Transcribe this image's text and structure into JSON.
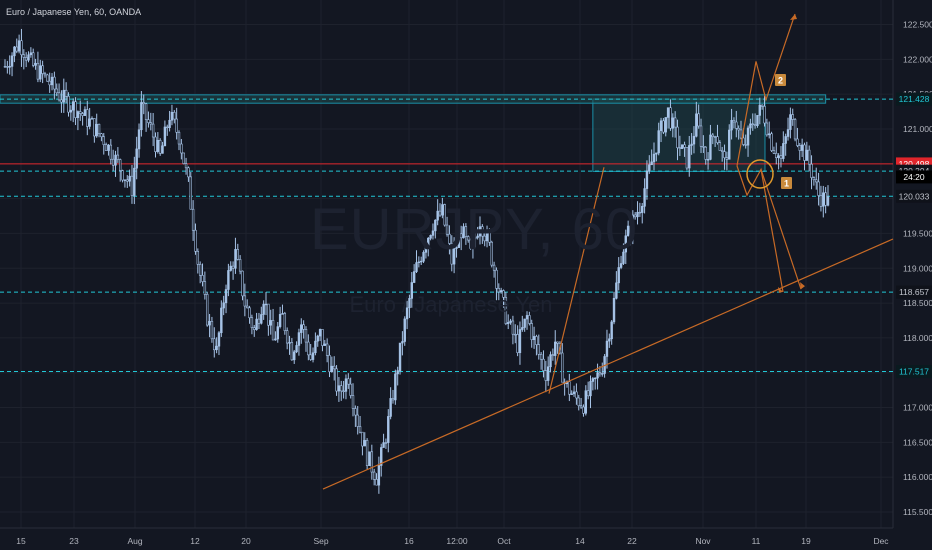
{
  "header": {
    "title": "Euro / Japanese Yen, 60, OANDA"
  },
  "watermark": {
    "symbol": "EURJPY, 60",
    "name": "Euro / Japanese Yen"
  },
  "colors": {
    "background": "#131722",
    "grid": "#1e222d",
    "candle": "#a7c4e8",
    "cyan_line": "#22c7d6",
    "trend_line": "#c76a26",
    "red_line": "#e0252b",
    "badge_red": "#e0252b",
    "badge_dark": "#0f121a",
    "box_fill": "#1f4a4f",
    "box_border": "#1a8fa6",
    "axis_text": "#b2b5be",
    "annotation_badge": "#c98a3c"
  },
  "chart_data": {
    "type": "candlestick",
    "title": "Euro / Japanese Yen, 60, OANDA",
    "ylim": [
      115.3,
      122.75
    ],
    "y_ticks": [
      115.5,
      116.0,
      116.5,
      117.0,
      117.5,
      118.0,
      118.5,
      119.0,
      119.5,
      120.0,
      120.5,
      121.0,
      121.5,
      122.0,
      122.5
    ],
    "y_tick_labels": [
      "115.500",
      "116.000",
      "116.500",
      "117.000",
      "117.500",
      "118.000",
      "118.500",
      "119.000",
      "119.500",
      "120.000",
      "120.500",
      "121.000",
      "121.500",
      "122.000",
      "122.500"
    ],
    "x_ticks": [
      "15",
      "23",
      "Aug",
      "12",
      "20",
      "Sep",
      "16",
      "12:00",
      "Oct",
      "14",
      "22",
      "Nov",
      "11",
      "19",
      "Dec"
    ],
    "price_path": [
      [
        0,
        121.9
      ],
      [
        3,
        122.25
      ],
      [
        6,
        121.9
      ],
      [
        9,
        121.7
      ],
      [
        12,
        121.45
      ],
      [
        15,
        121.3
      ],
      [
        18,
        121.1
      ],
      [
        21,
        120.85
      ],
      [
        24,
        120.5
      ],
      [
        27,
        120.15
      ],
      [
        29,
        121.3
      ],
      [
        31,
        121.0
      ],
      [
        33,
        120.6
      ],
      [
        35,
        121.2
      ],
      [
        37,
        120.9
      ],
      [
        39,
        120.2
      ],
      [
        41,
        119.1
      ],
      [
        43,
        118.3
      ],
      [
        45,
        117.8
      ],
      [
        47,
        118.8
      ],
      [
        49,
        119.2
      ],
      [
        51,
        118.5
      ],
      [
        53,
        118.1
      ],
      [
        55,
        118.6
      ],
      [
        57,
        117.95
      ],
      [
        59,
        118.3
      ],
      [
        61,
        117.8
      ],
      [
        63,
        118.2
      ],
      [
        65,
        117.7
      ],
      [
        67,
        118.05
      ],
      [
        69,
        117.65
      ],
      [
        71,
        117.2
      ],
      [
        73,
        117.45
      ],
      [
        75,
        116.8
      ],
      [
        77,
        116.3
      ],
      [
        79,
        116.0
      ],
      [
        81,
        116.6
      ],
      [
        83,
        117.4
      ],
      [
        85,
        118.2
      ],
      [
        87,
        118.9
      ],
      [
        89,
        119.3
      ],
      [
        91,
        119.65
      ],
      [
        93,
        119.8
      ],
      [
        95,
        119.1
      ],
      [
        97,
        119.55
      ],
      [
        99,
        119.2
      ],
      [
        101,
        119.7
      ],
      [
        103,
        119.3
      ],
      [
        105,
        118.7
      ],
      [
        107,
        118.2
      ],
      [
        109,
        117.9
      ],
      [
        111,
        118.3
      ],
      [
        113,
        117.85
      ],
      [
        115,
        117.5
      ],
      [
        117,
        117.95
      ],
      [
        119,
        117.35
      ],
      [
        121,
        117.15
      ],
      [
        123,
        117.05
      ],
      [
        125,
        117.3
      ],
      [
        127,
        117.6
      ],
      [
        129,
        118.3
      ],
      [
        131,
        119.2
      ],
      [
        133,
        119.6
      ],
      [
        135,
        119.9
      ],
      [
        137,
        120.4
      ],
      [
        139,
        120.9
      ],
      [
        141,
        121.25
      ],
      [
        143,
        120.8
      ],
      [
        145,
        120.55
      ],
      [
        147,
        121.1
      ],
      [
        149,
        120.6
      ],
      [
        151,
        121.0
      ],
      [
        153,
        120.5
      ],
      [
        155,
        121.2
      ],
      [
        157,
        120.7
      ],
      [
        159,
        121.1
      ],
      [
        161,
        121.3
      ],
      [
        163,
        120.8
      ],
      [
        165,
        120.55
      ],
      [
        167,
        121.15
      ],
      [
        169,
        120.8
      ],
      [
        171,
        120.5
      ],
      [
        173,
        120.05
      ],
      [
        175,
        119.95
      ]
    ],
    "levels": [
      {
        "value": 121.428,
        "label": "121.428",
        "style": "cyan-dashed"
      },
      {
        "value": 120.498,
        "label": "120.498",
        "style": "red-solid"
      },
      {
        "value": 120.394,
        "label": "120.394",
        "style": "cyan-dashed"
      },
      {
        "value": 120.033,
        "label": "120.033",
        "style": "cyan-dashed"
      },
      {
        "value": 118.657,
        "label": "118.657",
        "style": "cyan-dashed"
      },
      {
        "value": 117.517,
        "label": "117.517",
        "style": "cyan-dashed"
      }
    ],
    "countdown_label": "24:20",
    "annotations": [
      "1",
      "2"
    ],
    "grid": true
  }
}
